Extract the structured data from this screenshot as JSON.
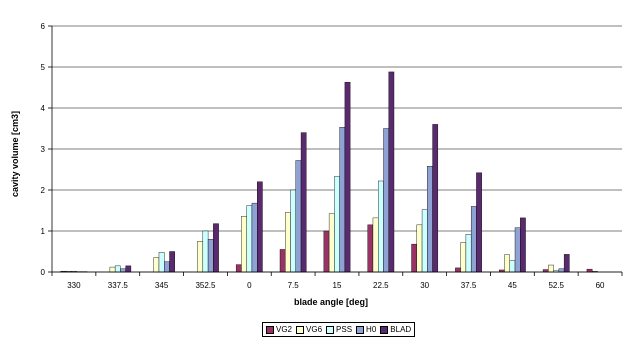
{
  "chart_data": {
    "type": "bar",
    "title": "",
    "xlabel": "blade angle  [deg]",
    "ylabel": "cavity volume [cm3]",
    "ylim": [
      0,
      6
    ],
    "yticks": [
      "0",
      "1",
      "2",
      "3",
      "4",
      "5",
      "6"
    ],
    "grid": "horizontal",
    "legend_position": "bottom",
    "categories": [
      "330",
      "337.5",
      "345",
      "352.5",
      "0",
      "7.5",
      "15",
      "22.5",
      "30",
      "37.5",
      "45",
      "52.5",
      "60"
    ],
    "series": [
      {
        "name": "VG2",
        "color": "#993366",
        "values": [
          0.02,
          0,
          0,
          0,
          0.18,
          0.55,
          1.0,
          1.15,
          0.68,
          0.1,
          0.05,
          0.06,
          0.07
        ]
      },
      {
        "name": "VG6",
        "color": "#ffffcc",
        "values": [
          0.02,
          0.12,
          0.35,
          0.75,
          1.36,
          1.45,
          1.42,
          1.32,
          1.15,
          0.72,
          0.42,
          0.17,
          0.02
        ]
      },
      {
        "name": "PSS",
        "color": "#ccffff",
        "values": [
          0.02,
          0.15,
          0.48,
          1.0,
          1.62,
          2.0,
          2.33,
          2.22,
          1.52,
          0.92,
          0.28,
          0.03,
          0
        ]
      },
      {
        "name": "H0",
        "color": "#8fa2d4",
        "values": [
          0.01,
          0.08,
          0.25,
          0.8,
          1.68,
          2.72,
          3.53,
          3.5,
          2.58,
          1.6,
          1.08,
          0.08,
          0
        ]
      },
      {
        "name": "BLAD",
        "color": "#5a2a6e",
        "values": [
          0.01,
          0.15,
          0.5,
          1.18,
          2.2,
          3.4,
          4.63,
          4.88,
          3.6,
          2.42,
          1.32,
          0.43,
          0
        ]
      }
    ]
  }
}
